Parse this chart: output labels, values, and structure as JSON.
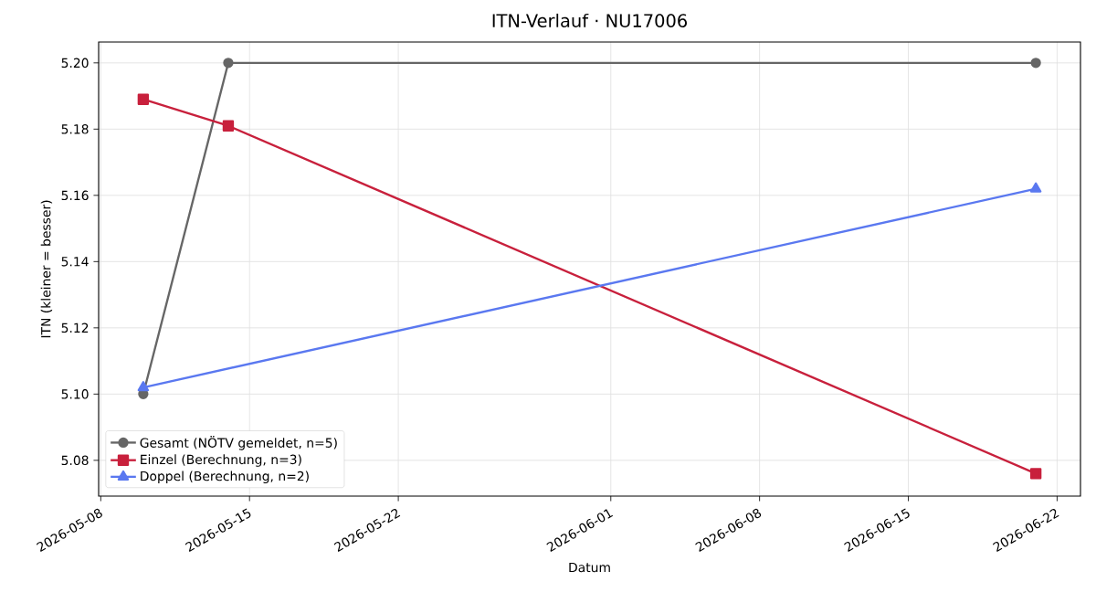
{
  "chart_data": {
    "type": "line",
    "title": "ITN-Verlauf · NU17006",
    "xlabel": "Datum",
    "ylabel": "ITN  (kleiner = besser)",
    "series": [
      {
        "name": "Gesamt (NÖTV gemeldet, n=5)",
        "color": "#666666",
        "marker": "circle",
        "x": [
          "2026-05-10",
          "2026-05-14",
          "2026-06-21"
        ],
        "values": [
          5.1,
          5.2,
          5.2
        ]
      },
      {
        "name": "Einzel (Berechnung, n=3)",
        "color": "#c8203c",
        "marker": "square",
        "x": [
          "2026-05-10",
          "2026-05-14",
          "2026-06-21"
        ],
        "values": [
          5.189,
          5.181,
          5.076
        ]
      },
      {
        "name": "Doppel (Berechnung, n=2)",
        "color": "#5a78f0",
        "marker": "triangle",
        "x": [
          "2026-05-10",
          "2026-06-21"
        ],
        "values": [
          5.102,
          5.162
        ]
      }
    ],
    "xlim": [
      "2026-05-07T21:36",
      "2026-06-23T02:24"
    ],
    "xticks": [
      "2026-05-08",
      "2026-05-15",
      "2026-05-22",
      "2026-06-01",
      "2026-06-08",
      "2026-06-15",
      "2026-06-22"
    ],
    "ylim": [
      5.0692,
      5.2063
    ],
    "yticks": [
      {
        "value": 5.08,
        "label": "5.08"
      },
      {
        "value": 5.1,
        "label": "5.10"
      },
      {
        "value": 5.12,
        "label": "5.12"
      },
      {
        "value": 5.14,
        "label": "5.14"
      },
      {
        "value": 5.16,
        "label": "5.16"
      },
      {
        "value": 5.18,
        "label": "5.18"
      },
      {
        "value": 5.2,
        "label": "5.20"
      }
    ],
    "grid": true,
    "legend": "bottom left",
    "line_style": "solid"
  }
}
